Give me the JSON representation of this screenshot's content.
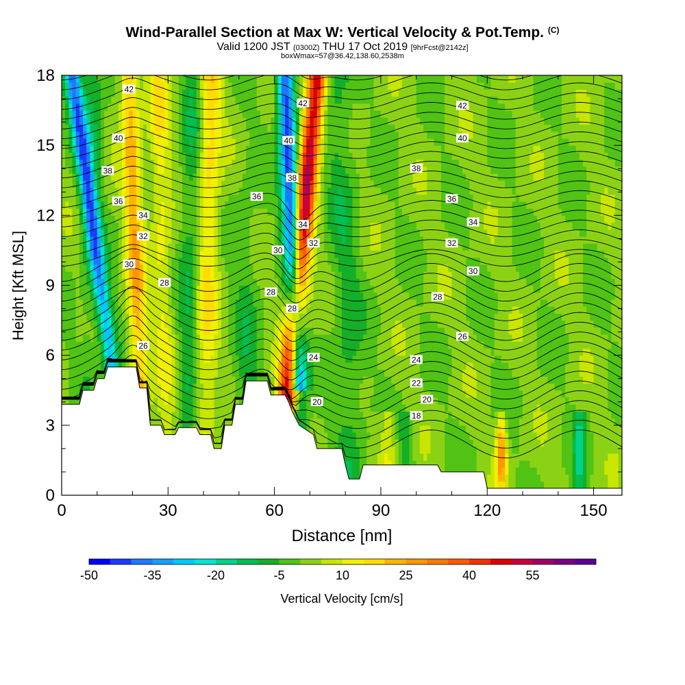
{
  "chart_data": {
    "type": "heatmap",
    "title": "Wind-Parallel Section at Max W: Vertical Velocity & Pot.Temp.",
    "title_mark": "(C)",
    "subtitle_main": "Valid 1200 JST",
    "subtitle_utc": "(0300Z)",
    "subtitle_date": "THU 17 Oct 2019",
    "subtitle_fcst": "[9hrFcst@2142z]",
    "subtitle2": "boxWmax=57@36.42,138.60,2538m",
    "xlabel": "Distance [nm]",
    "ylabel": "Height [Kft MSL]",
    "xlim": [
      0,
      158
    ],
    "ylim": [
      0,
      18
    ],
    "x_ticks": [
      "0",
      "30",
      "60",
      "90",
      "120",
      "150"
    ],
    "y_ticks": [
      "0",
      "3",
      "6",
      "9",
      "12",
      "15",
      "18"
    ],
    "colorbar": {
      "label": "Vertical Velocity [cm/s]",
      "tick_labels": [
        "-50",
        "-35",
        "-20",
        "-5",
        "10",
        "25",
        "40",
        "55"
      ],
      "colors": [
        "#0000ff",
        "#1a3cff",
        "#1e78ff",
        "#14a0ff",
        "#00c8ff",
        "#00e6d2",
        "#00d28c",
        "#00be50",
        "#14af28",
        "#50c314",
        "#8cd214",
        "#c8e600",
        "#f0f000",
        "#ffdc00",
        "#ffb400",
        "#ff9600",
        "#ff7800",
        "#ff5a00",
        "#f03200",
        "#dc0000",
        "#c8003c",
        "#a00064",
        "#780082",
        "#5a0096"
      ]
    },
    "theta_contours": [
      {
        "label": "18",
        "y_mid": 3.0
      },
      {
        "label": "20",
        "y_mid": 3.9
      },
      {
        "label": "22",
        "y_mid": 4.6
      },
      {
        "label": "24",
        "y_mid": 5.6
      },
      {
        "label": "26",
        "y_mid": 6.8
      },
      {
        "label": "28",
        "y_mid": 8.5
      },
      {
        "label": "30",
        "y_mid": 9.6
      },
      {
        "label": "32",
        "y_mid": 10.8
      },
      {
        "label": "34",
        "y_mid": 11.7
      },
      {
        "label": "36",
        "y_mid": 12.8
      },
      {
        "label": "38",
        "y_mid": 13.9
      },
      {
        "label": "40",
        "y_mid": 15.3
      },
      {
        "label": "42",
        "y_mid": 16.8
      }
    ],
    "contour_labels": [
      {
        "text": "42",
        "x": 19,
        "y": 17.4
      },
      {
        "text": "42",
        "x": 68,
        "y": 16.8
      },
      {
        "text": "42",
        "x": 113,
        "y": 16.7
      },
      {
        "text": "40",
        "x": 16,
        "y": 15.3
      },
      {
        "text": "40",
        "x": 64,
        "y": 15.2
      },
      {
        "text": "40",
        "x": 113,
        "y": 15.3
      },
      {
        "text": "38",
        "x": 13,
        "y": 13.9
      },
      {
        "text": "38",
        "x": 65,
        "y": 13.6
      },
      {
        "text": "38",
        "x": 100,
        "y": 14.0
      },
      {
        "text": "36",
        "x": 16,
        "y": 12.6
      },
      {
        "text": "36",
        "x": 55,
        "y": 12.8
      },
      {
        "text": "36",
        "x": 110,
        "y": 12.7
      },
      {
        "text": "34",
        "x": 23,
        "y": 12.0
      },
      {
        "text": "34",
        "x": 68,
        "y": 11.6
      },
      {
        "text": "34",
        "x": 116,
        "y": 11.7
      },
      {
        "text": "32",
        "x": 23,
        "y": 11.1
      },
      {
        "text": "32",
        "x": 71,
        "y": 10.8
      },
      {
        "text": "32",
        "x": 110,
        "y": 10.8
      },
      {
        "text": "30",
        "x": 19,
        "y": 9.9
      },
      {
        "text": "30",
        "x": 61,
        "y": 10.5
      },
      {
        "text": "30",
        "x": 116,
        "y": 9.6
      },
      {
        "text": "28",
        "x": 29,
        "y": 9.1
      },
      {
        "text": "28",
        "x": 59,
        "y": 8.7
      },
      {
        "text": "28",
        "x": 65,
        "y": 8.0
      },
      {
        "text": "28",
        "x": 106,
        "y": 8.5
      },
      {
        "text": "26",
        "x": 23,
        "y": 6.4
      },
      {
        "text": "26",
        "x": 113,
        "y": 6.8
      },
      {
        "text": "24",
        "x": 71,
        "y": 5.9
      },
      {
        "text": "24",
        "x": 100,
        "y": 5.8
      },
      {
        "text": "22",
        "x": 100,
        "y": 4.8
      },
      {
        "text": "20",
        "x": 72,
        "y": 4.0
      },
      {
        "text": "20",
        "x": 103,
        "y": 4.1
      },
      {
        "text": "18",
        "x": 100,
        "y": 3.4
      }
    ],
    "velocity_bands": [
      {
        "name": "updraft-west",
        "x_top": 20,
        "x_bottom": 23,
        "peak": 25
      },
      {
        "name": "downdraft-west",
        "x_top": 3,
        "x_bottom": 19,
        "peak": -35
      },
      {
        "name": "updraft-main",
        "x_top": 72,
        "x_bottom": 61,
        "peak": 57
      },
      {
        "name": "downdraft-main",
        "x_top": 63,
        "x_bottom": 68,
        "peak": -45
      },
      {
        "name": "updraft-mid",
        "x_top": 44,
        "x_bottom": 40,
        "peak": 25
      }
    ]
  }
}
